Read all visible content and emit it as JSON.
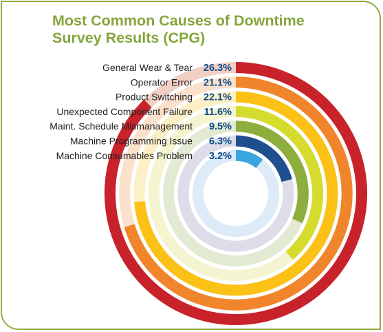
{
  "chart_data": {
    "type": "radial-bar",
    "title": "Most Common Causes of Downtime",
    "subtitle": "Survey Results (CPG)",
    "categories": [
      "General Wear & Tear",
      "Operator Error",
      "Product Switching",
      "Unexpected Component Failure",
      "Maint. Schedule Mismanagement",
      "Machine Programming Issue",
      "Machine Consumables Problem"
    ],
    "values": [
      26.3,
      21.1,
      22.1,
      11.6,
      9.5,
      6.3,
      3.2
    ],
    "value_labels": [
      "26.3%",
      "21.1%",
      "22.1%",
      "11.6%",
      "9.5%",
      "6.3%",
      "3.2%"
    ],
    "unit": "%",
    "colors": [
      "#c8222a",
      "#f0852b",
      "#fbc116",
      "#d5dc2d",
      "#8dad3c",
      "#1f4f8e",
      "#3aa6e0"
    ],
    "track_colors": [
      "#f0cfc4",
      "#fbe0cc",
      "#fdf0c6",
      "#f4f5d0",
      "#e3ead3",
      "#dddde9",
      "#dcebf7"
    ],
    "title_color": "#84a63c",
    "value_label_color": "#0f4c8a",
    "frame_color": "#8dad3c"
  }
}
